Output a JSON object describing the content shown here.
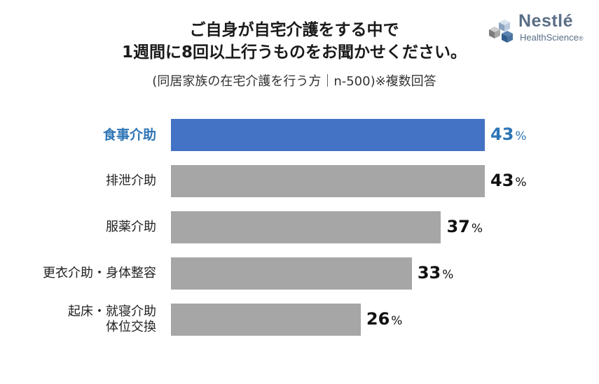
{
  "title_line1": "ご自身が自宅介護をする中で",
  "title_line2": "1週間に8回以上行うものをお聞かせください。",
  "subtitle": "(同居家族の在宅介護を行う方｜n-500)※複数回答",
  "logo": {
    "brand": "Nestlé",
    "sub": "HealthScience",
    "mark": "®"
  },
  "chart_data": {
    "type": "bar",
    "orientation": "horizontal",
    "unit": "%",
    "categories": [
      "食事介助",
      "排泄介助",
      "服薬介助",
      "更衣介助・身体整容",
      "起床・就寝介助 体位交換"
    ],
    "category_lines": [
      [
        "食事介助"
      ],
      [
        "排泄介助"
      ],
      [
        "服薬介助"
      ],
      [
        "更衣介助・身体整容"
      ],
      [
        "起床・就寝介助",
        "体位交換"
      ]
    ],
    "values": [
      43,
      43,
      37,
      33,
      26
    ],
    "highlight_index": 0,
    "colors": {
      "highlight": "#4472c4",
      "default": "#a6a6a6",
      "highlight_text": "#2e75b6"
    }
  }
}
